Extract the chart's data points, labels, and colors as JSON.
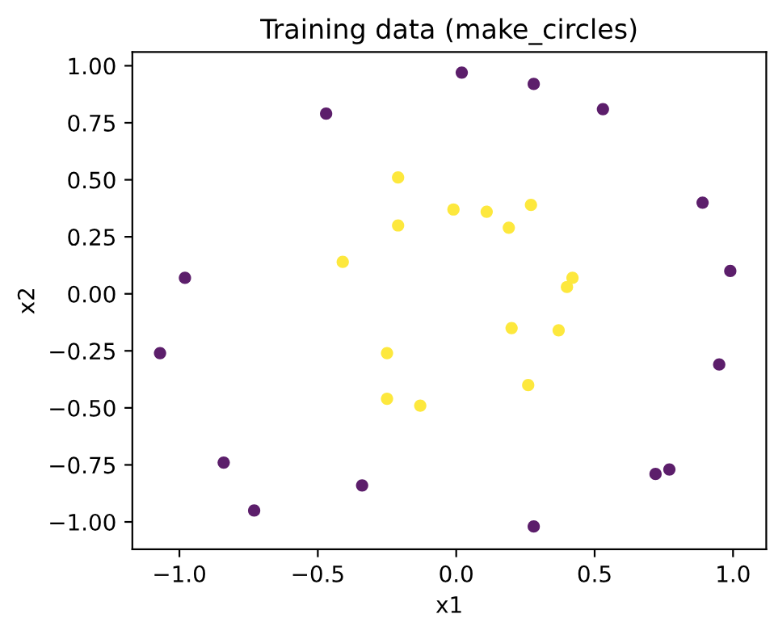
{
  "chart_data": {
    "type": "scatter",
    "title": "Training data (make_circles)",
    "xlabel": "x1",
    "ylabel": "x2",
    "xlim": [
      -1.17,
      1.12
    ],
    "ylim": [
      -1.12,
      1.06
    ],
    "xticks": [
      {
        "value": -1.0,
        "label": "−1.0"
      },
      {
        "value": -0.5,
        "label": "−0.5"
      },
      {
        "value": 0.0,
        "label": "0.0"
      },
      {
        "value": 0.5,
        "label": "0.5"
      },
      {
        "value": 1.0,
        "label": "1.0"
      }
    ],
    "yticks": [
      {
        "value": -1.0,
        "label": "−1.00"
      },
      {
        "value": -0.75,
        "label": "−0.75"
      },
      {
        "value": -0.5,
        "label": "−0.50"
      },
      {
        "value": -0.25,
        "label": "−0.25"
      },
      {
        "value": 0.0,
        "label": "0.00"
      },
      {
        "value": 0.25,
        "label": "0.25"
      },
      {
        "value": 0.5,
        "label": "0.50"
      },
      {
        "value": 0.75,
        "label": "0.75"
      },
      {
        "value": 1.0,
        "label": "1.00"
      }
    ],
    "grid": false,
    "legend": false,
    "marker": "circle",
    "series": [
      {
        "color": "#5c1e6b",
        "x": [
          -0.47,
          -0.98,
          -1.07,
          -0.84,
          -0.34,
          -0.73,
          0.02,
          0.28,
          0.53,
          0.89,
          0.99,
          0.95,
          0.77,
          0.72,
          0.28
        ],
        "values": [
          0.79,
          0.07,
          -0.26,
          -0.74,
          -0.84,
          -0.95,
          0.97,
          0.92,
          0.81,
          0.4,
          0.1,
          -0.31,
          -0.77,
          -0.79,
          -1.02
        ]
      },
      {
        "color": "#fde83d",
        "x": [
          -0.21,
          -0.01,
          -0.21,
          -0.41,
          -0.25,
          -0.25,
          -0.13,
          0.11,
          0.27,
          0.19,
          0.42,
          0.4,
          0.2,
          0.37,
          0.26
        ],
        "values": [
          0.51,
          0.37,
          0.3,
          0.14,
          -0.26,
          -0.46,
          -0.49,
          0.36,
          0.39,
          0.29,
          0.07,
          0.03,
          -0.15,
          -0.16,
          -0.4
        ]
      }
    ]
  }
}
